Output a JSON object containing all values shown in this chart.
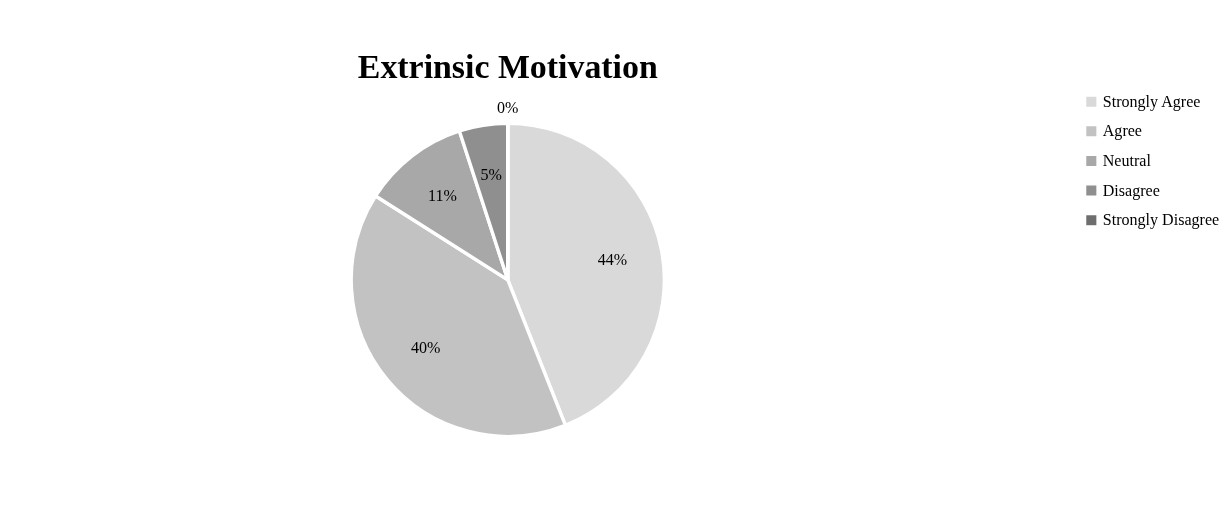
{
  "chart_data": {
    "type": "pie",
    "title": "Extrinsic Motivation",
    "categories": [
      "Strongly Agree",
      "Agree",
      "Neutral",
      "Disagree",
      "Strongly Disagree"
    ],
    "values": [
      44,
      40,
      11,
      5,
      0
    ],
    "colors": [
      "#d9d9d9",
      "#c2c2c2",
      "#a8a8a8",
      "#8f8f8f",
      "#6e6e6e"
    ],
    "value_labels": [
      "44%",
      "40%",
      "11%",
      "5%",
      "0%"
    ],
    "legend": "right"
  }
}
